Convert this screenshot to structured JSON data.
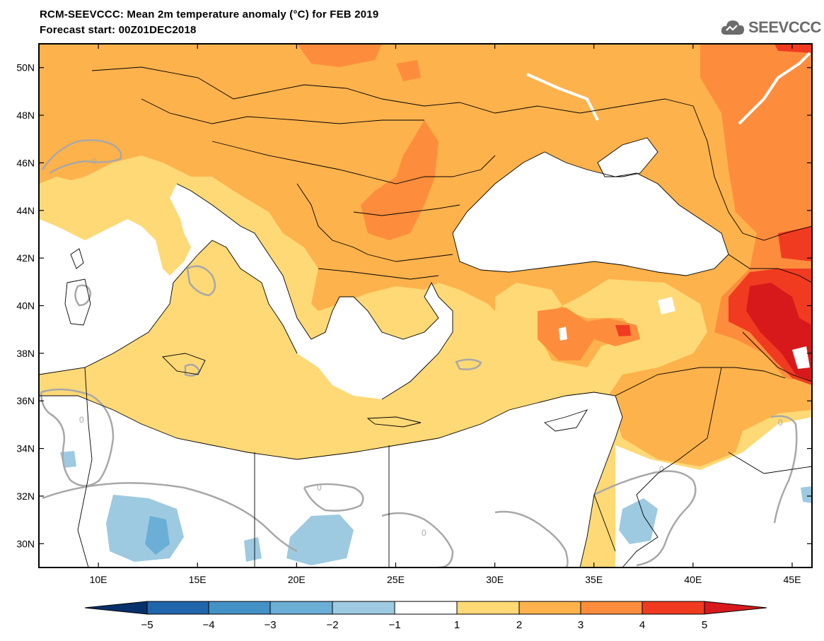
{
  "header": {
    "title": "RCM-SEEVCCC: Mean 2m temperature anomaly (°C) for FEB 2019",
    "subtitle": "Forecast start: 00Z01DEC2018"
  },
  "logo": {
    "text": "SEEVCCC",
    "icon": "cloud-icon"
  },
  "map": {
    "type": "filled-contour",
    "variable": "Mean 2m temperature anomaly",
    "units": "°C",
    "period": "FEB 2019",
    "lon_range": [
      7,
      46
    ],
    "lat_range": [
      29,
      51
    ],
    "lat_ticks": [
      {
        "value": 50,
        "label": "50N"
      },
      {
        "value": 48,
        "label": "48N"
      },
      {
        "value": 46,
        "label": "46N"
      },
      {
        "value": 44,
        "label": "44N"
      },
      {
        "value": 42,
        "label": "42N"
      },
      {
        "value": 40,
        "label": "40N"
      },
      {
        "value": 38,
        "label": "38N"
      },
      {
        "value": 36,
        "label": "36N"
      },
      {
        "value": 34,
        "label": "34N"
      },
      {
        "value": 32,
        "label": "32N"
      },
      {
        "value": 30,
        "label": "30N"
      }
    ],
    "lon_ticks": [
      {
        "value": 10,
        "label": "10E"
      },
      {
        "value": 15,
        "label": "15E"
      },
      {
        "value": 20,
        "label": "20E"
      },
      {
        "value": 25,
        "label": "25E"
      },
      {
        "value": 30,
        "label": "30E"
      },
      {
        "value": 35,
        "label": "35E"
      },
      {
        "value": 40,
        "label": "40E"
      },
      {
        "value": 45,
        "label": "45E"
      }
    ],
    "zero_contour_label": "0",
    "colors": {
      "water": "#ffffff",
      "range_1_2": "#fed976",
      "range_2_3": "#feb24c",
      "range_3_4": "#fd8d3c",
      "range_4_5": "#f03b20",
      "above_5": "#d7191c",
      "range_m1_m2": "#9ecae1",
      "range_m2_m3": "#6baed6",
      "zero_contour": "#a8a8a8",
      "borders": "#000000"
    }
  },
  "colorbar": {
    "levels": [
      "−5",
      "−4",
      "−3",
      "−2",
      "−1",
      "1",
      "2",
      "3",
      "4",
      "5"
    ],
    "colors": [
      "#08306b",
      "#2166ac",
      "#4292c6",
      "#6baed6",
      "#9ecae1",
      "#ffffff",
      "#fed976",
      "#feb24c",
      "#fd8d3c",
      "#f03b20",
      "#d7191c"
    ]
  }
}
